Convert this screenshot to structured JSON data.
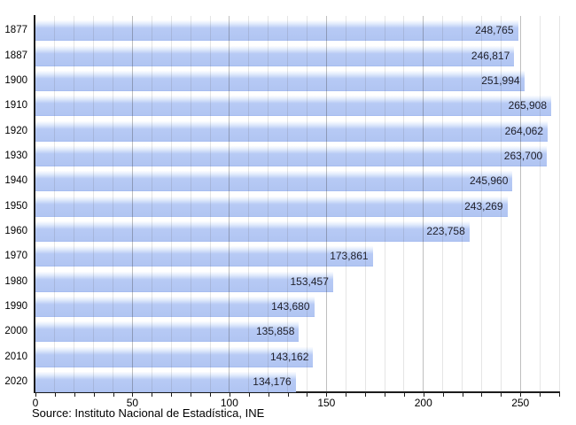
{
  "chart_data": {
    "type": "bar",
    "orientation": "horizontal",
    "title": "",
    "xlabel": "",
    "ylabel": "",
    "categories": [
      "1877",
      "1887",
      "1900",
      "1910",
      "1920",
      "1930",
      "1940",
      "1950",
      "1960",
      "1970",
      "1980",
      "1990",
      "2000",
      "2010",
      "2020"
    ],
    "values": [
      248765,
      246817,
      251994,
      265908,
      264062,
      263700,
      245960,
      243269,
      223758,
      173861,
      153457,
      143680,
      135858,
      143162,
      134176
    ],
    "value_labels": [
      "248,765",
      "246,817",
      "251,994",
      "265,908",
      "264,062",
      "263,700",
      "245,960",
      "243,269",
      "223,758",
      "173,861",
      "153,457",
      "143,680",
      "135,858",
      "143,162",
      "134,176"
    ],
    "xlim": [
      0,
      270000
    ],
    "x_ticks": [
      0,
      50,
      100,
      150,
      200,
      250
    ],
    "x_tick_unit": 1000,
    "gridline_step": 10000,
    "major_gridline_step": 50000,
    "grid": "on",
    "legend": null,
    "source": "Source: Instituto Nacional de Estadística, INE"
  },
  "colors": {
    "bar_fill": "#b1c5f2",
    "bar_gloss": "#fcfdff",
    "bar_edge": "#a7bdf0",
    "axis": "#1c1c1c",
    "grid_minor": "rgba(95,95,95,0.16)",
    "grid_major": "rgba(55,55,55,0.32)",
    "value_text": "#1f1f28",
    "tick_text": "#000000",
    "background": "#ffffff"
  }
}
